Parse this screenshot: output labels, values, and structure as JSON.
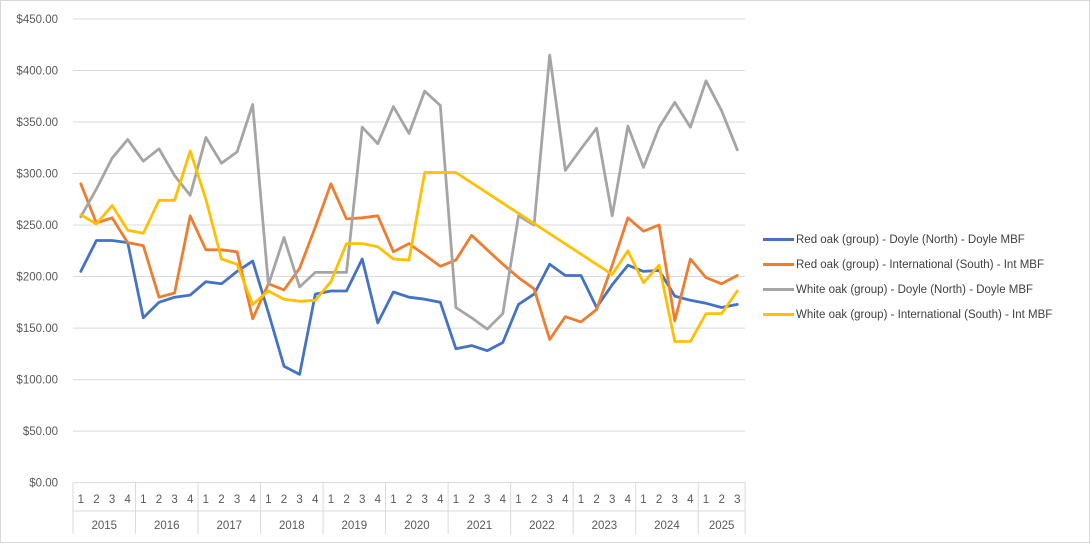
{
  "chart_data": {
    "type": "line",
    "title": "",
    "xlabel": "",
    "ylabel": "",
    "ylim": [
      0,
      450
    ],
    "ytick_step": 50,
    "y_tick_labels": [
      "$0.00",
      "$50.00",
      "$100.00",
      "$150.00",
      "$200.00",
      "$250.00",
      "$300.00",
      "$350.00",
      "$400.00",
      "$450.00"
    ],
    "grid": "horizontal",
    "legend_position": "right",
    "years": [
      "2015",
      "2016",
      "2017",
      "2018",
      "2019",
      "2020",
      "2021",
      "2022",
      "2023",
      "2024",
      "2025"
    ],
    "quarters_per_year": [
      4,
      4,
      4,
      4,
      4,
      4,
      4,
      4,
      4,
      4,
      3
    ],
    "quarter_labels": [
      "1",
      "2",
      "3",
      "4"
    ],
    "series": [
      {
        "name": "Red oak (group) - Doyle (North) - Doyle MBF",
        "color": "#4472c4",
        "values": [
          205,
          235,
          235,
          233,
          160,
          175,
          180,
          182,
          195,
          193,
          205,
          215,
          165,
          113,
          105,
          183,
          186,
          186,
          217,
          155,
          185,
          180,
          178,
          175,
          130,
          133,
          128,
          136,
          173,
          183,
          212,
          201,
          201,
          170,
          192,
          211,
          205,
          206,
          181,
          177,
          174,
          170,
          173
        ]
      },
      {
        "name": "Red oak (group) - International (South) - Int MBF",
        "color": "#ed7d31",
        "values": [
          290,
          252,
          257,
          233,
          230,
          180,
          184,
          259,
          226,
          226,
          224,
          159,
          193,
          187,
          208,
          248,
          290,
          256,
          257,
          259,
          224,
          232,
          221,
          210,
          216,
          240,
          226,
          212,
          199,
          188,
          139,
          161,
          156,
          168,
          211,
          257,
          244,
          250,
          157,
          217,
          199,
          193,
          201
        ]
      },
      {
        "name": "White oak (group) - Doyle (North) - Doyle MBF",
        "color": "#a5a5a5",
        "values": [
          258,
          285,
          315,
          333,
          312,
          324,
          298,
          279,
          335,
          310,
          321,
          367,
          192,
          238,
          190,
          204,
          204,
          204,
          345,
          329,
          365,
          339,
          380,
          366,
          170,
          160,
          149,
          164,
          259,
          250,
          415,
          303,
          324,
          344,
          259,
          346,
          306,
          345,
          369,
          345,
          390,
          361,
          323
        ]
      },
      {
        "name": "White oak (group) - International (South) - Int MBF",
        "color": "#ffc000",
        "values": [
          260,
          251,
          269,
          245,
          242,
          274,
          274,
          322,
          275,
          217,
          212,
          173,
          186,
          178,
          176,
          177,
          195,
          232,
          232,
          229,
          217,
          216,
          301,
          301,
          301,
          null,
          null,
          null,
          null,
          null,
          null,
          null,
          null,
          null,
          202,
          225,
          194,
          211,
          137,
          137,
          164,
          164,
          186
        ]
      }
    ]
  }
}
